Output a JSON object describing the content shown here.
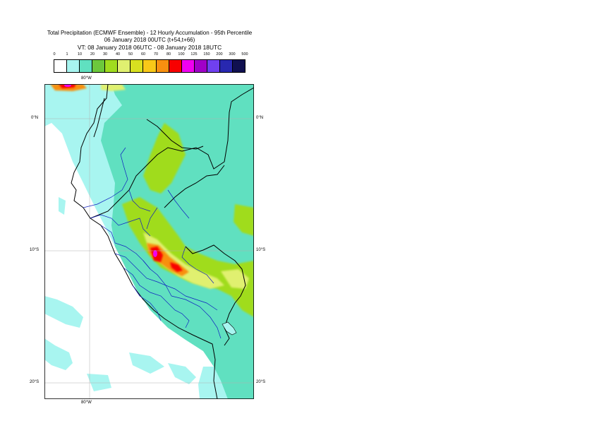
{
  "title": {
    "line1": "Total Precipitation (ECMWF Ensemble) - 12 Hourly Accumulation - 95th Percentile",
    "line2": "06 January 2018 00UTC (t+54,t+66)",
    "line3": "VT: 08 January 2018 06UTC - 08 January 2018 18UTC"
  },
  "legend": {
    "ticks": [
      "0",
      "1",
      "10",
      "20",
      "30",
      "40",
      "50",
      "60",
      "70",
      "80",
      "100",
      "125",
      "150",
      "200",
      "300",
      "500"
    ],
    "colors": [
      "#ffffff",
      "#a8f5f0",
      "#60e0c0",
      "#6cc83c",
      "#a0dc1e",
      "#e0f070",
      "#d8e020",
      "#f8c818",
      "#f89010",
      "#f80000",
      "#f000f0",
      "#a000c8",
      "#7040f0",
      "#2828b0",
      "#101050"
    ]
  },
  "map": {
    "lon_label_top": "80°W",
    "lon_label_bottom": "80°W",
    "lat_labels_left": [
      "0°N",
      "10°S",
      "20°S"
    ],
    "lat_labels_right": [
      "0°N",
      "10°S",
      "20°S"
    ],
    "colors": {
      "sea": "#a8f5f0",
      "land_wet": "#60e0c0",
      "land_mid": "#a0dc1e",
      "yellow": "#e0f070",
      "orange": "#f89010",
      "red": "#f80000",
      "magenta": "#f000f0",
      "white": "#ffffff",
      "border_national": "#000000",
      "border_regional": "#1020c0",
      "grid": "#b0b0b0"
    }
  }
}
